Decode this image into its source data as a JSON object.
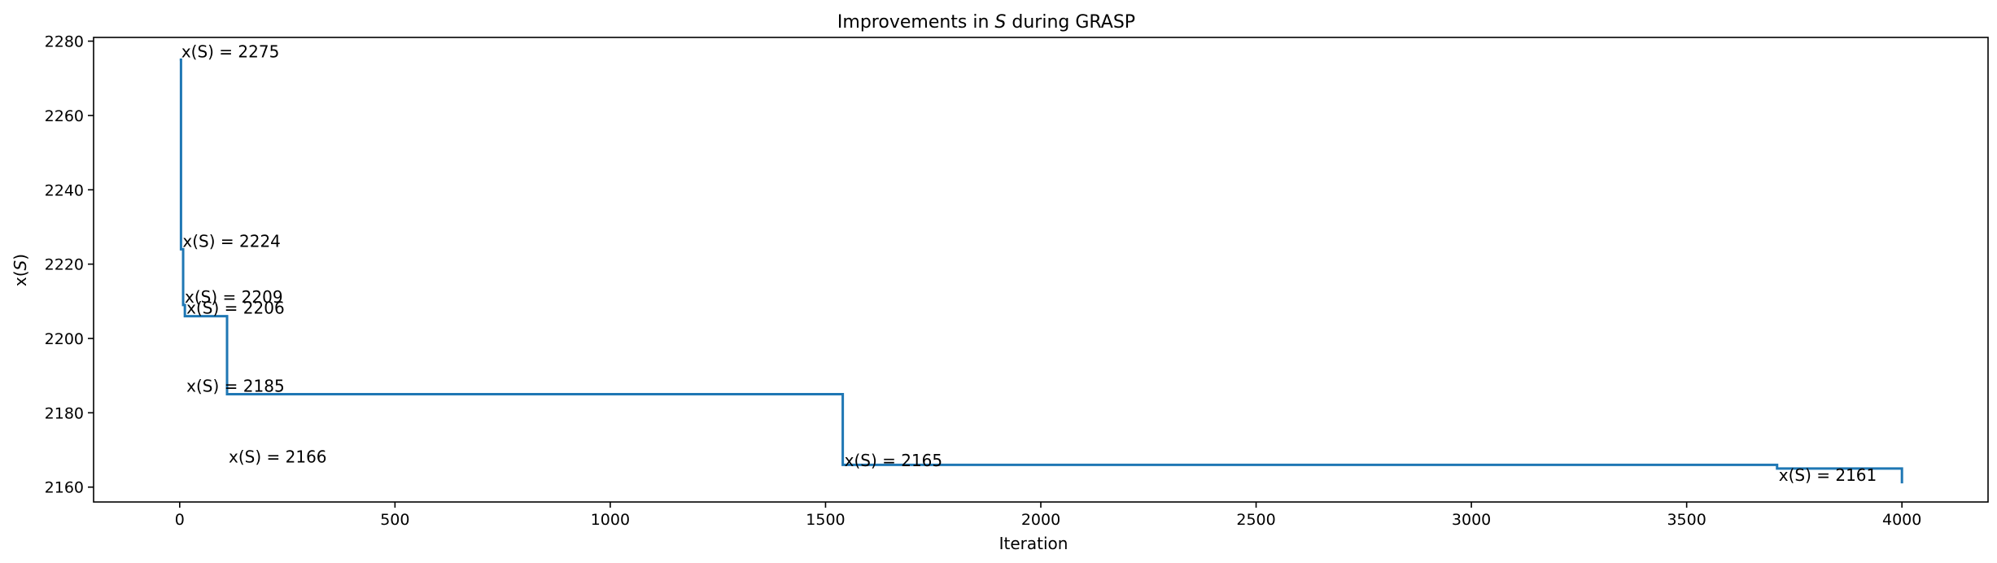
{
  "chart_data": {
    "type": "line",
    "step": true,
    "title_pre": "Improvements in ",
    "title_sym": "S",
    "title_post": " during GRASP",
    "xlabel": "Iteration",
    "ylabel_pre": "x(",
    "ylabel_sym": "S",
    "ylabel_post": ")",
    "xlim": [
      -200,
      4200
    ],
    "ylim": [
      2156,
      2281
    ],
    "xticks": [
      0,
      500,
      1000,
      1500,
      2000,
      2500,
      3000,
      3500,
      4000
    ],
    "yticks": [
      2160,
      2180,
      2200,
      2220,
      2240,
      2260,
      2280
    ],
    "grid": false,
    "color": "#1f77b4",
    "series": [
      {
        "x": [
          0,
          3,
          8,
          12,
          110,
          1540,
          3710,
          4000
        ],
        "y": [
          2275,
          2224,
          2209,
          2206,
          2185,
          2166,
          2165,
          2161
        ]
      }
    ],
    "annotations": [
      {
        "x": 0,
        "y": 2275,
        "text": "x(S) = 2275"
      },
      {
        "x": 3,
        "y": 2224,
        "text": "x(S) = 2224"
      },
      {
        "x": 8,
        "y": 2209,
        "text": "x(S) = 2209"
      },
      {
        "x": 12,
        "y": 2206,
        "text": "x(S) = 2206"
      },
      {
        "x": 12,
        "y": 2185,
        "text": "x(S) = 2185"
      },
      {
        "x": 110,
        "y": 2166,
        "text": "x(S) = 2166"
      },
      {
        "x": 1540,
        "y": 2165,
        "text": "x(S) = 2165"
      },
      {
        "x": 3710,
        "y": 2161,
        "text": "x(S) = 2161"
      }
    ]
  }
}
